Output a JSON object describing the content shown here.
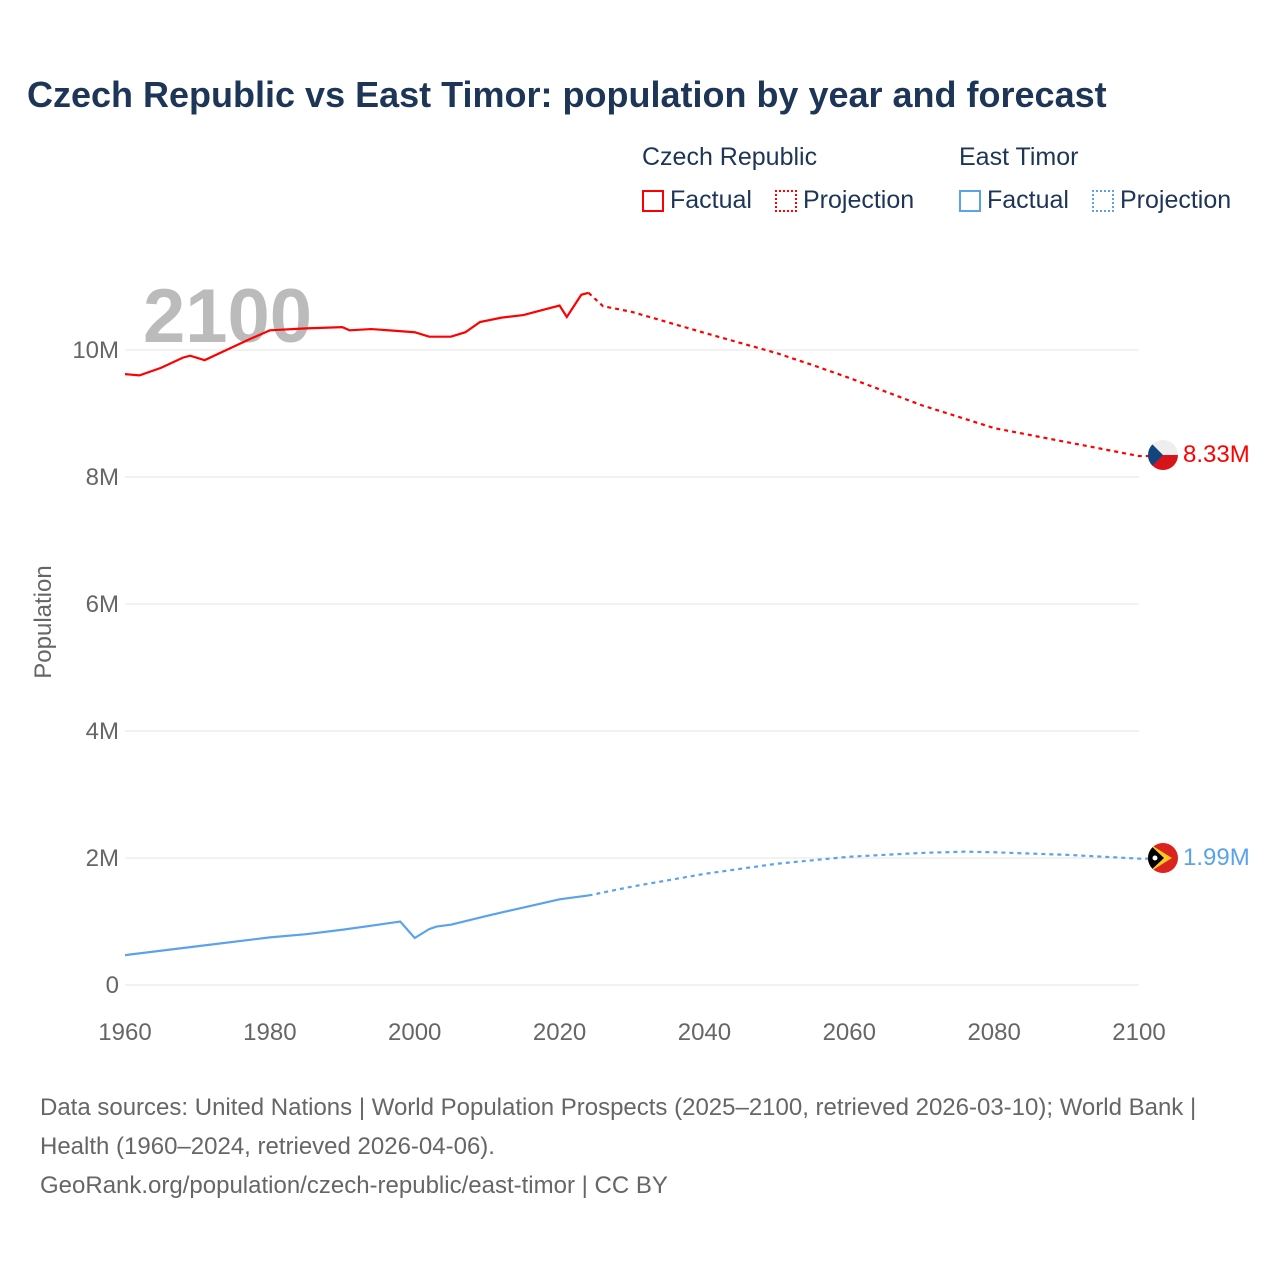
{
  "title": "Czech Republic vs East Timor: population by year and forecast",
  "legend": {
    "groups": [
      {
        "name": "Czech Republic",
        "factual": "Factual",
        "projection": "Projection",
        "color": "#ff0000"
      },
      {
        "name": "East Timor",
        "factual": "Factual",
        "projection": "Projection",
        "color": "#5aa3ea"
      }
    ]
  },
  "year_overlay": "2100",
  "sources": {
    "line1": "Data sources: United Nations | World Population Prospects (2025–2100, retrieved 2026-03-10); World Bank | Health (1960–2024, retrieved 2026-04-06).",
    "line2": "GeoRank.org/population/czech-republic/east-timor | CC BY"
  },
  "chart_data": {
    "type": "line",
    "title": "Czech Republic vs East Timor: population by year and forecast",
    "xlabel": "",
    "ylabel": "Population",
    "xlim": [
      1960,
      2100
    ],
    "ylim": [
      0,
      11000000
    ],
    "x_ticks": [
      1960,
      1980,
      2000,
      2020,
      2040,
      2060,
      2080,
      2100
    ],
    "y_ticks": [
      {
        "v": 0,
        "l": "0"
      },
      {
        "v": 2000000,
        "l": "2M"
      },
      {
        "v": 4000000,
        "l": "4M"
      },
      {
        "v": 6000000,
        "l": "6M"
      },
      {
        "v": 8000000,
        "l": "8M"
      },
      {
        "v": 10000000,
        "l": "10M"
      }
    ],
    "grid": true,
    "series": [
      {
        "name": "Czech Republic",
        "color": "#ff0000",
        "end_label": "8.33M",
        "factual": [
          [
            1960,
            9.62
          ],
          [
            1962,
            9.6
          ],
          [
            1965,
            9.72
          ],
          [
            1968,
            9.88
          ],
          [
            1969,
            9.91
          ],
          [
            1971,
            9.84
          ],
          [
            1974,
            10.0
          ],
          [
            1977,
            10.16
          ],
          [
            1980,
            10.31
          ],
          [
            1985,
            10.34
          ],
          [
            1990,
            10.36
          ],
          [
            1991,
            10.31
          ],
          [
            1994,
            10.33
          ],
          [
            2000,
            10.28
          ],
          [
            2002,
            10.21
          ],
          [
            2005,
            10.21
          ],
          [
            2007,
            10.28
          ],
          [
            2009,
            10.44
          ],
          [
            2012,
            10.51
          ],
          [
            2015,
            10.55
          ],
          [
            2018,
            10.64
          ],
          [
            2020,
            10.7
          ],
          [
            2021,
            10.52
          ],
          [
            2023,
            10.87
          ],
          [
            2024,
            10.9
          ]
        ],
        "projection": [
          [
            2024,
            10.9
          ],
          [
            2026,
            10.69
          ],
          [
            2030,
            10.6
          ],
          [
            2040,
            10.27
          ],
          [
            2050,
            9.95
          ],
          [
            2055,
            9.76
          ],
          [
            2060,
            9.56
          ],
          [
            2070,
            9.13
          ],
          [
            2080,
            8.77
          ],
          [
            2090,
            8.55
          ],
          [
            2100,
            8.33
          ]
        ]
      },
      {
        "name": "East Timor",
        "color": "#5aa3ea",
        "end_label": "1.99M",
        "factual": [
          [
            1960,
            0.47
          ],
          [
            1970,
            0.61
          ],
          [
            1980,
            0.75
          ],
          [
            1985,
            0.8
          ],
          [
            1990,
            0.87
          ],
          [
            1995,
            0.95
          ],
          [
            1998,
            1.0
          ],
          [
            2000,
            0.74
          ],
          [
            2002,
            0.88
          ],
          [
            2003,
            0.92
          ],
          [
            2005,
            0.95
          ],
          [
            2010,
            1.09
          ],
          [
            2015,
            1.22
          ],
          [
            2020,
            1.35
          ],
          [
            2024,
            1.41
          ]
        ],
        "projection": [
          [
            2024,
            1.41
          ],
          [
            2030,
            1.55
          ],
          [
            2040,
            1.75
          ],
          [
            2050,
            1.91
          ],
          [
            2060,
            2.02
          ],
          [
            2070,
            2.08
          ],
          [
            2076,
            2.1
          ],
          [
            2080,
            2.09
          ],
          [
            2090,
            2.05
          ],
          [
            2100,
            1.99
          ]
        ]
      }
    ],
    "legend": "top-right"
  }
}
